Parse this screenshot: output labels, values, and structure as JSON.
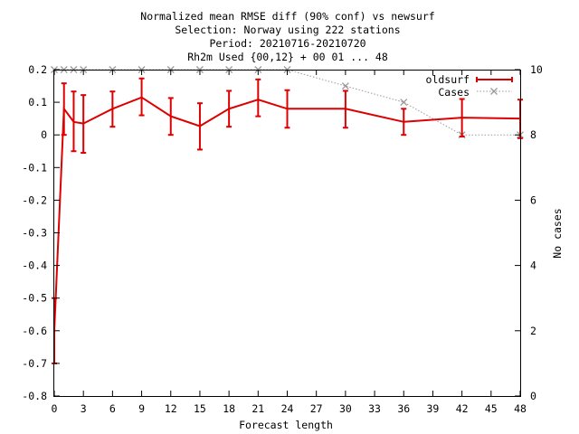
{
  "chart_data": {
    "type": "line",
    "title_lines": [
      "Normalized mean RMSE diff (90% conf) vs newsurf",
      "Selection: Norway using   222 stations",
      "Period: 20210716-20210720",
      "Rh2m   Used {00,12} + 00 01 ... 48"
    ],
    "xlabel": "Forecast length",
    "ylabel": "",
    "y2label": "No cases",
    "xlim": [
      0,
      48
    ],
    "ylim": [
      -0.8,
      0.2
    ],
    "y2lim": [
      0,
      10
    ],
    "xticks": [
      0,
      3,
      6,
      9,
      12,
      15,
      18,
      21,
      24,
      27,
      30,
      33,
      36,
      39,
      42,
      45,
      48
    ],
    "yticks": [
      -0.8,
      -0.7,
      -0.6,
      -0.5,
      -0.4,
      -0.3,
      -0.2,
      -0.1,
      0,
      0.1,
      0.2
    ],
    "yticklabels": [
      "-0.8",
      "-0.7",
      "-0.6",
      "-0.5",
      "-0.4",
      "-0.3",
      "-0.2",
      "-0.1",
      "0",
      "0.1",
      "0.2"
    ],
    "y2ticks": [
      0,
      2,
      4,
      6,
      8,
      10
    ],
    "grid": false,
    "legend_position": "top-right",
    "series": [
      {
        "name": "oldsurf",
        "color": "#dd0000",
        "x": [
          0,
          1,
          2,
          3,
          6,
          9,
          12,
          15,
          18,
          21,
          24,
          30,
          36,
          42,
          48
        ],
        "values": [
          -0.6,
          0.08,
          0.04,
          0.035,
          0.08,
          0.115,
          0.057,
          0.027,
          0.08,
          0.108,
          0.08,
          0.08,
          0.04,
          0.053,
          0.05
        ],
        "err_low": [
          -0.7,
          0.0,
          -0.05,
          -0.055,
          0.025,
          0.06,
          0.0,
          -0.045,
          0.025,
          0.057,
          0.022,
          0.022,
          0.0,
          -0.005,
          -0.01
        ],
        "err_high": [
          -0.5,
          0.158,
          0.133,
          0.122,
          0.133,
          0.173,
          0.113,
          0.097,
          0.135,
          0.17,
          0.137,
          0.135,
          0.08,
          0.11,
          0.108
        ]
      },
      {
        "name": "Cases",
        "color": "#999999",
        "axis": "right",
        "x": [
          0,
          1,
          2,
          3,
          6,
          9,
          12,
          15,
          18,
          21,
          24,
          30,
          36,
          42,
          48
        ],
        "values": [
          10,
          10,
          10,
          10,
          10,
          10,
          10,
          10,
          10,
          10,
          10,
          9.5,
          9,
          8,
          8
        ]
      }
    ]
  }
}
